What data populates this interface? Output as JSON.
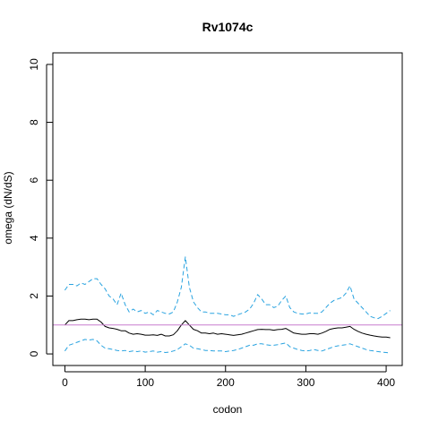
{
  "chart_data": {
    "type": "line",
    "title": "Rv1074c",
    "xlabel": "codon",
    "ylabel": "omega (dN/dS)",
    "xlim": [
      -15,
      420
    ],
    "ylim": [
      -0.4,
      10.4
    ],
    "xticks": [
      0,
      100,
      200,
      300,
      400
    ],
    "yticks": [
      0,
      2,
      4,
      6,
      8,
      10
    ],
    "grid": false,
    "reference_line": {
      "y": 1.0,
      "color": "#c77cce"
    },
    "colors": {
      "mean": "#000000",
      "bounds": "#29a3e0"
    },
    "series": [
      {
        "style": "solid",
        "x": [
          0,
          5,
          10,
          15,
          20,
          25,
          30,
          35,
          40,
          45,
          50,
          55,
          60,
          65,
          70,
          75,
          80,
          85,
          90,
          95,
          100,
          105,
          110,
          115,
          120,
          125,
          130,
          135,
          140,
          145,
          150,
          155,
          160,
          165,
          170,
          175,
          180,
          185,
          190,
          195,
          200,
          205,
          210,
          215,
          220,
          225,
          230,
          235,
          240,
          245,
          250,
          255,
          260,
          265,
          270,
          275,
          280,
          285,
          290,
          295,
          300,
          305,
          310,
          315,
          320,
          325,
          330,
          335,
          340,
          345,
          350,
          355,
          360,
          365,
          370,
          375,
          380,
          385,
          390,
          395,
          400,
          405
        ],
        "y": [
          1.0,
          1.15,
          1.15,
          1.18,
          1.2,
          1.2,
          1.18,
          1.2,
          1.2,
          1.1,
          0.95,
          0.9,
          0.88,
          0.85,
          0.8,
          0.8,
          0.72,
          0.68,
          0.7,
          0.68,
          0.65,
          0.65,
          0.66,
          0.64,
          0.68,
          0.62,
          0.62,
          0.66,
          0.8,
          1.0,
          1.15,
          1.0,
          0.85,
          0.8,
          0.72,
          0.72,
          0.7,
          0.72,
          0.68,
          0.7,
          0.68,
          0.66,
          0.64,
          0.66,
          0.68,
          0.72,
          0.76,
          0.8,
          0.84,
          0.85,
          0.84,
          0.84,
          0.82,
          0.84,
          0.85,
          0.88,
          0.8,
          0.72,
          0.7,
          0.68,
          0.68,
          0.7,
          0.7,
          0.68,
          0.72,
          0.78,
          0.85,
          0.88,
          0.9,
          0.9,
          0.92,
          0.95,
          0.85,
          0.78,
          0.72,
          0.68,
          0.65,
          0.62,
          0.6,
          0.58,
          0.58,
          0.56
        ]
      },
      {
        "style": "dashed",
        "x": [
          0,
          5,
          10,
          15,
          20,
          25,
          30,
          35,
          40,
          45,
          50,
          55,
          60,
          65,
          70,
          75,
          80,
          85,
          90,
          95,
          100,
          105,
          110,
          115,
          120,
          125,
          130,
          135,
          140,
          145,
          150,
          155,
          160,
          165,
          170,
          175,
          180,
          185,
          190,
          195,
          200,
          205,
          210,
          215,
          220,
          225,
          230,
          235,
          240,
          245,
          250,
          255,
          260,
          265,
          270,
          275,
          280,
          285,
          290,
          295,
          300,
          305,
          310,
          315,
          320,
          325,
          330,
          335,
          340,
          345,
          350,
          355,
          360,
          365,
          370,
          375,
          380,
          385,
          390,
          395,
          400,
          405
        ],
        "y": [
          2.2,
          2.4,
          2.4,
          2.35,
          2.45,
          2.4,
          2.5,
          2.6,
          2.6,
          2.4,
          2.25,
          2.0,
          1.9,
          1.7,
          2.1,
          1.7,
          1.45,
          1.55,
          1.45,
          1.5,
          1.4,
          1.45,
          1.35,
          1.5,
          1.45,
          1.4,
          1.38,
          1.45,
          1.8,
          2.3,
          3.35,
          2.3,
          1.8,
          1.6,
          1.45,
          1.45,
          1.4,
          1.4,
          1.4,
          1.38,
          1.35,
          1.35,
          1.3,
          1.35,
          1.4,
          1.45,
          1.55,
          1.75,
          2.05,
          1.9,
          1.7,
          1.7,
          1.6,
          1.65,
          1.85,
          2.0,
          1.6,
          1.45,
          1.4,
          1.38,
          1.38,
          1.42,
          1.4,
          1.4,
          1.45,
          1.6,
          1.75,
          1.85,
          1.9,
          1.95,
          2.1,
          2.35,
          1.9,
          1.75,
          1.6,
          1.45,
          1.3,
          1.25,
          1.22,
          1.3,
          1.4,
          1.5
        ]
      },
      {
        "style": "dashed",
        "x": [
          0,
          5,
          10,
          15,
          20,
          25,
          30,
          35,
          40,
          45,
          50,
          55,
          60,
          65,
          70,
          75,
          80,
          85,
          90,
          95,
          100,
          105,
          110,
          115,
          120,
          125,
          130,
          135,
          140,
          145,
          150,
          155,
          160,
          165,
          170,
          175,
          180,
          185,
          190,
          195,
          200,
          205,
          210,
          215,
          220,
          225,
          230,
          235,
          240,
          245,
          250,
          255,
          260,
          265,
          270,
          275,
          280,
          285,
          290,
          295,
          300,
          305,
          310,
          315,
          320,
          325,
          330,
          335,
          340,
          345,
          350,
          355,
          360,
          365,
          370,
          375,
          380,
          385,
          390,
          395,
          400,
          405
        ],
        "y": [
          0.1,
          0.3,
          0.35,
          0.4,
          0.45,
          0.5,
          0.48,
          0.5,
          0.45,
          0.3,
          0.2,
          0.18,
          0.15,
          0.12,
          0.1,
          0.12,
          0.08,
          0.1,
          0.08,
          0.1,
          0.06,
          0.08,
          0.1,
          0.06,
          0.08,
          0.05,
          0.06,
          0.1,
          0.15,
          0.25,
          0.35,
          0.3,
          0.2,
          0.18,
          0.15,
          0.12,
          0.12,
          0.1,
          0.1,
          0.1,
          0.08,
          0.1,
          0.12,
          0.15,
          0.2,
          0.25,
          0.3,
          0.3,
          0.35,
          0.35,
          0.32,
          0.3,
          0.3,
          0.32,
          0.35,
          0.38,
          0.25,
          0.2,
          0.15,
          0.12,
          0.1,
          0.12,
          0.15,
          0.12,
          0.1,
          0.15,
          0.2,
          0.25,
          0.28,
          0.3,
          0.32,
          0.35,
          0.3,
          0.25,
          0.2,
          0.15,
          0.12,
          0.1,
          0.08,
          0.06,
          0.05,
          0.03
        ]
      }
    ]
  }
}
